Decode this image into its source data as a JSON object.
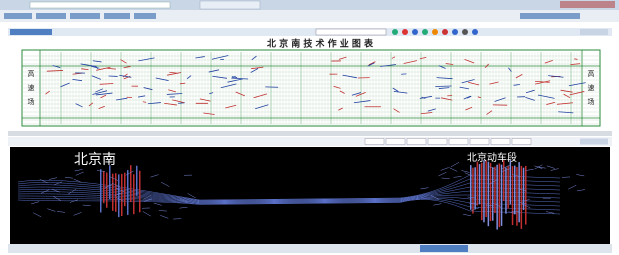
{
  "work_chart": {
    "title": "北 京 南 技 术 作 业 图 表",
    "left_label": [
      "高",
      "速",
      "场"
    ],
    "right_label": [
      "高",
      "速",
      "场"
    ]
  },
  "station_map": {
    "left_station": "北京南",
    "right_station": "北京动车段"
  }
}
